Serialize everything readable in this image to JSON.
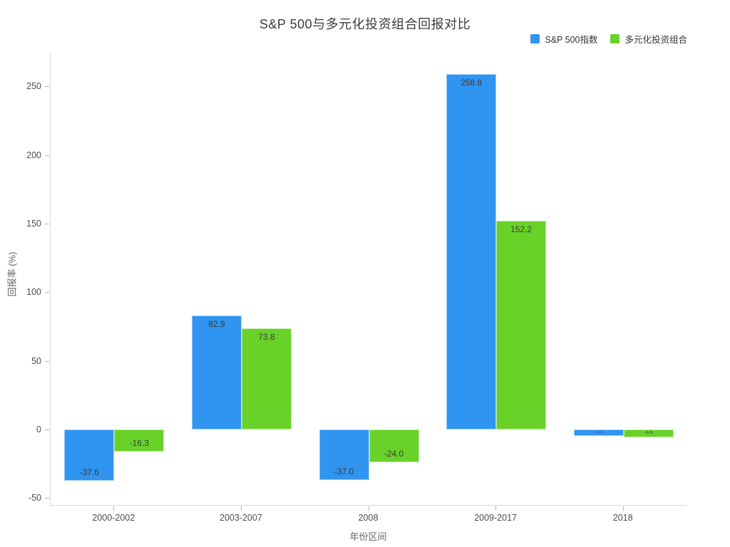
{
  "title": "S&P 500与多元化投资组合回报对比",
  "legend": {
    "items": [
      {
        "label": "S&P 500指数",
        "color": "#3094f1"
      },
      {
        "label": "多元化投资组合",
        "color": "#68d228"
      }
    ]
  },
  "chart_data": {
    "type": "bar",
    "title": "S&P 500与多元化投资组合回报对比",
    "categories": [
      "2000-2002",
      "2003-2007",
      "2008",
      "2009-2017",
      "2018"
    ],
    "series": [
      {
        "name": "S&P 500指数",
        "color": "#3094f1",
        "values": [
          -37.6,
          82.9,
          -37.0,
          258.8,
          -4.4
        ],
        "labels": [
          "-37.6",
          "82.9",
          "-37.0",
          "258.8",
          "-4.4"
        ]
      },
      {
        "name": "多元化投资组合",
        "color": "#68d228",
        "values": [
          -16.3,
          73.8,
          -24.0,
          152.2,
          -5.6
        ],
        "labels": [
          "-16.3",
          "73.8",
          "-24.0",
          "152.2",
          "-5.6"
        ]
      }
    ],
    "xlabel": "年份区间",
    "ylabel": "回报率 (%)",
    "yticks": [
      250,
      200,
      150,
      100,
      50,
      0,
      -50
    ],
    "ylim": [
      -55.5,
      274
    ],
    "grid": false,
    "legend_position": "top-right",
    "bar_label_position": "inside-end"
  }
}
